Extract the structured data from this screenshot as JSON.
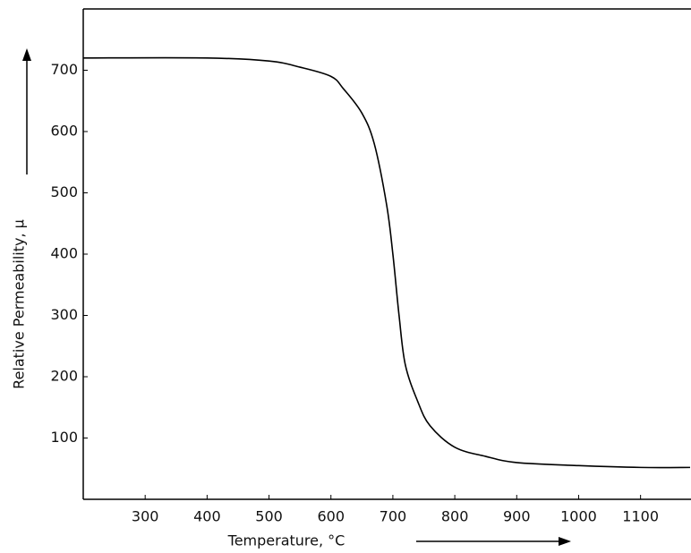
{
  "chart_data": {
    "type": "line",
    "x_label": "Temperature, °C",
    "y_label": "Relative Permeability, μ",
    "x": [
      200,
      400,
      500,
      550,
      600,
      620,
      650,
      670,
      690,
      700,
      710,
      720,
      740,
      760,
      800,
      850,
      900,
      1000,
      1100,
      1180
    ],
    "series": [
      {
        "name": "Relative permeability",
        "color": "#000000",
        "values": [
          720,
          720,
          715,
          705,
          690,
          670,
          630,
          580,
          480,
          400,
          300,
          220,
          160,
          120,
          85,
          70,
          60,
          55,
          52,
          52
        ]
      }
    ],
    "xlim": [
      200,
      1180
    ],
    "ylim": [
      0,
      800
    ],
    "xticks": [
      300,
      400,
      500,
      600,
      700,
      800,
      900,
      1000,
      1100
    ],
    "yticks": [
      100,
      200,
      300,
      400,
      500,
      600,
      700
    ],
    "grid": false
  }
}
